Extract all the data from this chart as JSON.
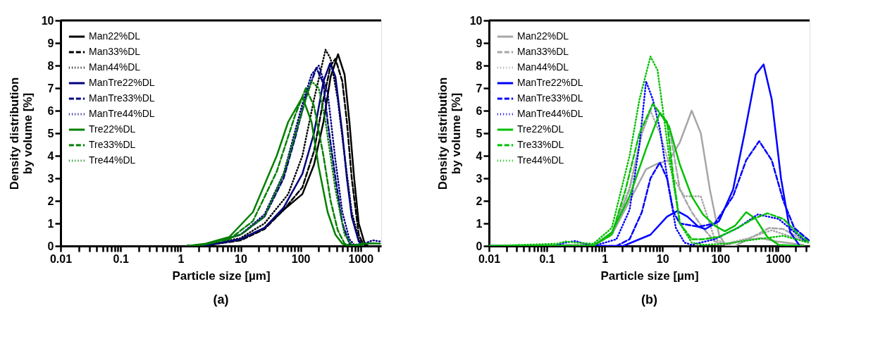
{
  "chart_data": [
    {
      "type": "line",
      "title": "(a)",
      "xlabel": "Particle size [µm]",
      "ylabel": "Density  distribution\nby volume [%]",
      "log": "x",
      "grid": false,
      "legend": "top left",
      "xlim": [
        0.01,
        2200
      ],
      "ylim": [
        0,
        10
      ],
      "yticks": [
        0,
        1,
        2,
        3,
        4,
        5,
        6,
        7,
        8,
        9,
        10
      ],
      "xticks": [
        0.01,
        {
          "value": 0.02,
          "label": null
        },
        {
          "value": 0.03,
          "label": null
        },
        {
          "value": 0.04,
          "label": null
        },
        {
          "value": 0.05,
          "label": null
        },
        {
          "value": 0.06,
          "label": null
        },
        {
          "value": 0.07,
          "label": null
        },
        {
          "value": 0.08,
          "label": null
        },
        {
          "value": 0.09,
          "label": null
        },
        0.1,
        {
          "value": 0.2,
          "label": null
        },
        {
          "value": 0.3,
          "label": null
        },
        {
          "value": 0.4,
          "label": null
        },
        {
          "value": 0.5,
          "label": null
        },
        {
          "value": 0.6,
          "label": null
        },
        {
          "value": 0.7,
          "label": null
        },
        {
          "value": 0.8,
          "label": null
        },
        {
          "value": 0.9,
          "label": null
        },
        1,
        {
          "value": 2,
          "label": null
        },
        {
          "value": 3,
          "label": null
        },
        {
          "value": 4,
          "label": null
        },
        {
          "value": 5,
          "label": null
        },
        {
          "value": 6,
          "label": null
        },
        {
          "value": 7,
          "label": null
        },
        {
          "value": 8,
          "label": null
        },
        {
          "value": 9,
          "label": null
        },
        10,
        {
          "value": 20,
          "label": null
        },
        {
          "value": 30,
          "label": null
        },
        {
          "value": 40,
          "label": null
        },
        {
          "value": 50,
          "label": null
        },
        {
          "value": 60,
          "label": null
        },
        {
          "value": 70,
          "label": null
        },
        {
          "value": 80,
          "label": null
        },
        {
          "value": 90,
          "label": null
        },
        100,
        {
          "value": 200,
          "label": null
        },
        {
          "value": 300,
          "label": null
        },
        {
          "value": 400,
          "label": null
        },
        {
          "value": 500,
          "label": null
        },
        {
          "value": 600,
          "label": null
        },
        {
          "value": 700,
          "label": null
        },
        {
          "value": 800,
          "label": null
        },
        {
          "value": 900,
          "label": null
        },
        1000,
        {
          "value": 2000,
          "label": null
        }
      ],
      "series": [
        {
          "name": "Man22%DL",
          "color": "#000000",
          "line_style": "solid",
          "x": [
            1.28,
            2.6,
            10,
            25,
            52,
            107,
            167,
            240,
            316,
            420,
            540,
            650,
            780,
            930,
            1170,
            1340
          ],
          "values": [
            0,
            0.02,
            0.3,
            0.8,
            1.6,
            2.3,
            3.6,
            5.5,
            7.5,
            8.5,
            7.6,
            5.5,
            3.0,
            1.0,
            0.1,
            0
          ]
        },
        {
          "name": "Man33%DL",
          "color": "#000000",
          "line_style": "dashed",
          "x": [
            1.28,
            2.6,
            10,
            25,
            52,
            107,
            167,
            240,
            316,
            380,
            495,
            590,
            710,
            930,
            1120,
            1340
          ],
          "values": [
            0,
            0.02,
            0.25,
            0.75,
            1.6,
            2.6,
            4.2,
            6.5,
            8.0,
            8.3,
            7.3,
            5.5,
            3.0,
            0.5,
            0.05,
            0
          ]
        },
        {
          "name": "Man44%DL",
          "color": "#000000",
          "line_style": "dotted",
          "x": [
            1.28,
            2.6,
            10,
            25,
            62,
            107,
            167,
            260,
            316,
            415,
            540,
            710,
            930,
            1120,
            1340
          ],
          "values": [
            0,
            0.03,
            0.35,
            1.0,
            2.3,
            4.0,
            6.5,
            8.7,
            8.3,
            6.5,
            4.0,
            1.5,
            0.3,
            0,
            0
          ]
        },
        {
          "name": "ManTre22%DL",
          "color": "#000080",
          "line_style": "solid",
          "x": [
            1.28,
            2.6,
            10,
            25,
            52,
            107,
            167,
            240,
            310,
            380,
            495,
            590,
            710,
            930,
            1120
          ],
          "values": [
            0,
            0.02,
            0.3,
            0.8,
            1.7,
            3.2,
            5.0,
            7.3,
            8.1,
            7.5,
            5.0,
            3.0,
            1.3,
            0.2,
            0
          ]
        },
        {
          "name": "ManTre33%DL",
          "color": "#000080",
          "line_style": "dashed",
          "x": [
            1.28,
            2.6,
            10,
            25,
            52,
            81,
            122,
            183,
            240,
            282,
            380,
            495,
            650,
            780
          ],
          "values": [
            0,
            0.05,
            0.5,
            1.3,
            3.0,
            4.8,
            6.6,
            7.9,
            7.2,
            5.5,
            3.0,
            1.0,
            0.1,
            0
          ]
        },
        {
          "name": "ManTre44%DL",
          "color": "#000080",
          "line_style": "dotted",
          "x": [
            1.28,
            2.6,
            10,
            25,
            52,
            107,
            152,
            200,
            282,
            380,
            495,
            650,
            780,
            1120,
            1600,
            2100
          ],
          "values": [
            0,
            0.05,
            0.5,
            1.4,
            3.2,
            6.3,
            7.6,
            8.0,
            6.8,
            3.8,
            1.5,
            0.3,
            0.05,
            0.1,
            0.25,
            0.2
          ]
        },
        {
          "name": "Tre22%DL",
          "color": "#008000",
          "line_style": "solid",
          "x": [
            1.28,
            2.6,
            6.5,
            16,
            40,
            62,
            107,
            152,
            200,
            282,
            380,
            495,
            650,
            1120,
            1600,
            2100
          ],
          "values": [
            0,
            0.1,
            0.4,
            1.5,
            4.0,
            5.5,
            6.6,
            5.5,
            3.5,
            1.5,
            0.5,
            0.1,
            0,
            0.1,
            0.12,
            0.1
          ]
        },
        {
          "name": "Tre33%DL",
          "color": "#008000",
          "line_style": "dashed",
          "x": [
            1.28,
            2.6,
            6.5,
            16,
            40,
            81,
            122,
            167,
            240,
            316,
            415,
            540,
            710,
            1120
          ],
          "values": [
            0,
            0.07,
            0.3,
            1.1,
            3.3,
            5.8,
            7.0,
            6.2,
            4.0,
            2.0,
            0.7,
            0.1,
            0,
            0.05
          ]
        },
        {
          "name": "Tre44%DL",
          "color": "#008000",
          "line_style": "dotted",
          "x": [
            1.28,
            2.6,
            10,
            25,
            52,
            107,
            152,
            200,
            260,
            380,
            540,
            710,
            930
          ],
          "values": [
            0,
            0.06,
            0.5,
            1.3,
            3.2,
            6.0,
            7.3,
            7.0,
            5.5,
            2.5,
            0.5,
            0.05,
            0
          ]
        }
      ]
    },
    {
      "type": "line",
      "title": "(b)",
      "xlabel": "Particle size [µm]",
      "ylabel": "Density  distribution\nby volume [%]",
      "log": "x",
      "grid": false,
      "legend": "top left",
      "xlim": [
        0.01,
        3500
      ],
      "ylim": [
        0,
        10
      ],
      "yticks": [
        0,
        1,
        2,
        3,
        4,
        5,
        6,
        7,
        8,
        9,
        10
      ],
      "xticks": [
        0.01,
        {
          "value": 0.02,
          "label": null
        },
        {
          "value": 0.03,
          "label": null
        },
        {
          "value": 0.04,
          "label": null
        },
        {
          "value": 0.05,
          "label": null
        },
        {
          "value": 0.06,
          "label": null
        },
        {
          "value": 0.07,
          "label": null
        },
        {
          "value": 0.08,
          "label": null
        },
        {
          "value": 0.09,
          "label": null
        },
        0.1,
        {
          "value": 0.2,
          "label": null
        },
        {
          "value": 0.3,
          "label": null
        },
        {
          "value": 0.4,
          "label": null
        },
        {
          "value": 0.5,
          "label": null
        },
        {
          "value": 0.6,
          "label": null
        },
        {
          "value": 0.7,
          "label": null
        },
        {
          "value": 0.8,
          "label": null
        },
        {
          "value": 0.9,
          "label": null
        },
        1,
        {
          "value": 2,
          "label": null
        },
        {
          "value": 3,
          "label": null
        },
        {
          "value": 4,
          "label": null
        },
        {
          "value": 5,
          "label": null
        },
        {
          "value": 6,
          "label": null
        },
        {
          "value": 7,
          "label": null
        },
        {
          "value": 8,
          "label": null
        },
        {
          "value": 9,
          "label": null
        },
        10,
        {
          "value": 20,
          "label": null
        },
        {
          "value": 30,
          "label": null
        },
        {
          "value": 40,
          "label": null
        },
        {
          "value": 50,
          "label": null
        },
        {
          "value": 60,
          "label": null
        },
        {
          "value": 70,
          "label": null
        },
        {
          "value": 80,
          "label": null
        },
        {
          "value": 90,
          "label": null
        },
        100,
        {
          "value": 200,
          "label": null
        },
        {
          "value": 300,
          "label": null
        },
        {
          "value": 400,
          "label": null
        },
        {
          "value": 500,
          "label": null
        },
        {
          "value": 600,
          "label": null
        },
        {
          "value": 700,
          "label": null
        },
        {
          "value": 800,
          "label": null
        },
        {
          "value": 900,
          "label": null
        },
        1000,
        {
          "value": 2000,
          "label": null
        },
        {
          "value": 3000,
          "label": null
        }
      ],
      "series": [
        {
          "name": "Man22%DL",
          "color": "#a6a6a6",
          "line_style": "solid",
          "x": [
            0.01,
            0.64,
            1.33,
            2.7,
            5.2,
            8.2,
            13,
            20,
            32,
            46,
            66,
            95,
            126,
            180,
            280,
            490,
            930,
            2750
          ],
          "values": [
            0,
            0.02,
            0.5,
            2.0,
            3.4,
            3.65,
            3.8,
            4.6,
            6.0,
            5.0,
            2.5,
            0.5,
            0,
            0,
            0.25,
            0.35,
            0.2,
            0.05
          ]
        },
        {
          "name": "Man33%DL",
          "color": "#a6a6a6",
          "line_style": "dashed",
          "x": [
            0.01,
            0.64,
            1.33,
            2.7,
            4.4,
            6.8,
            13,
            20,
            32,
            50,
            80,
            126,
            310,
            700,
            1230,
            3000
          ],
          "values": [
            0,
            0.05,
            0.5,
            2.5,
            5.0,
            6.3,
            5.3,
            2.5,
            1.5,
            0.8,
            0.2,
            0.05,
            0.3,
            0.8,
            0.75,
            0.2
          ]
        },
        {
          "name": "Man44%DL",
          "color": "#a6a6a6",
          "line_style": "dotted",
          "x": [
            0.01,
            0.64,
            1.33,
            2.7,
            4.4,
            6.2,
            9,
            15.5,
            24,
            46,
            80,
            126,
            310,
            775,
            3000
          ],
          "values": [
            0,
            0.05,
            0.6,
            2.6,
            5.0,
            6.0,
            5.0,
            3.0,
            2.2,
            2.2,
            0.3,
            0.1,
            0.35,
            0.7,
            0.2
          ]
        },
        {
          "name": "ManTre22%DL",
          "color": "#0000ff",
          "line_style": "solid",
          "x": [
            0.01,
            2.1,
            6.2,
            12,
            18,
            27,
            42,
            55,
            95,
            166,
            263,
            410,
            560,
            775,
            1120,
            1620,
            2300
          ],
          "values": [
            0,
            0,
            0.5,
            1.3,
            1.55,
            1.3,
            0.85,
            0.75,
            1.1,
            2.5,
            5.0,
            7.6,
            8.05,
            6.5,
            3.0,
            0.6,
            0.05
          ]
        },
        {
          "name": "ManTre33%DL",
          "color": "#0000ff",
          "line_style": "dashed",
          "x": [
            0.01,
            1.6,
            2.7,
            4.4,
            6.2,
            9,
            12,
            15.5,
            20,
            42,
            80,
            166,
            280,
            470,
            775,
            1230,
            1900,
            3400
          ],
          "values": [
            0,
            0,
            0.3,
            1.5,
            3.0,
            3.7,
            3.0,
            1.5,
            1.0,
            0.85,
            1.0,
            2.2,
            3.8,
            4.65,
            3.8,
            2.0,
            0.8,
            0.25
          ]
        },
        {
          "name": "ManTre44%DL",
          "color": "#0000ff",
          "line_style": "dotted",
          "x": [
            0.15,
            0.21,
            0.31,
            0.64,
            1.6,
            2.7,
            4.0,
            5.2,
            6.8,
            9,
            13,
            17,
            24,
            32,
            80,
            200,
            445,
            1020,
            3000
          ],
          "values": [
            0.05,
            0.15,
            0.22,
            0,
            0.3,
            1.6,
            4.5,
            7.3,
            6.5,
            5.2,
            2.5,
            0.8,
            0.15,
            0.05,
            0.3,
            0.8,
            1.4,
            1.2,
            0.2
          ]
        },
        {
          "name": "Tre22%DL",
          "color": "#00c000",
          "line_style": "solid",
          "x": [
            0.01,
            0.64,
            1.33,
            2.7,
            5.2,
            9,
            13,
            20,
            32,
            50,
            80,
            120,
            180,
            280,
            410,
            650,
            1020,
            2750
          ],
          "values": [
            0,
            0,
            0.6,
            2.2,
            4.3,
            5.9,
            5.3,
            3.6,
            2.2,
            1.4,
            0.9,
            0.65,
            0.9,
            1.5,
            1.2,
            0.4,
            0.05,
            0
          ]
        },
        {
          "name": "Tre33%DL",
          "color": "#00c000",
          "line_style": "dashed",
          "x": [
            0.01,
            0.64,
            1.33,
            2.3,
            4.0,
            6.8,
            12,
            15.5,
            20,
            32,
            50,
            95,
            200,
            370,
            650,
            1230,
            2300,
            3300
          ],
          "values": [
            0,
            0.02,
            0.5,
            2.5,
            5.0,
            6.3,
            5.5,
            3.0,
            1.0,
            0.3,
            0.3,
            0.4,
            0.8,
            1.2,
            1.45,
            1.2,
            0.5,
            0.2
          ]
        },
        {
          "name": "Tre44%DL",
          "color": "#00c000",
          "line_style": "dotted",
          "x": [
            0.01,
            0.15,
            0.21,
            0.31,
            0.64,
            1.33,
            2.7,
            4.0,
            6.2,
            8.2,
            13,
            20,
            32,
            50,
            126,
            310,
            1230,
            3300
          ],
          "values": [
            0,
            0.1,
            0.2,
            0.15,
            0.1,
            0.8,
            4.0,
            6.5,
            8.4,
            7.8,
            4.0,
            1.0,
            0.15,
            0.05,
            0.1,
            0.25,
            0.45,
            0.15
          ]
        }
      ]
    }
  ]
}
